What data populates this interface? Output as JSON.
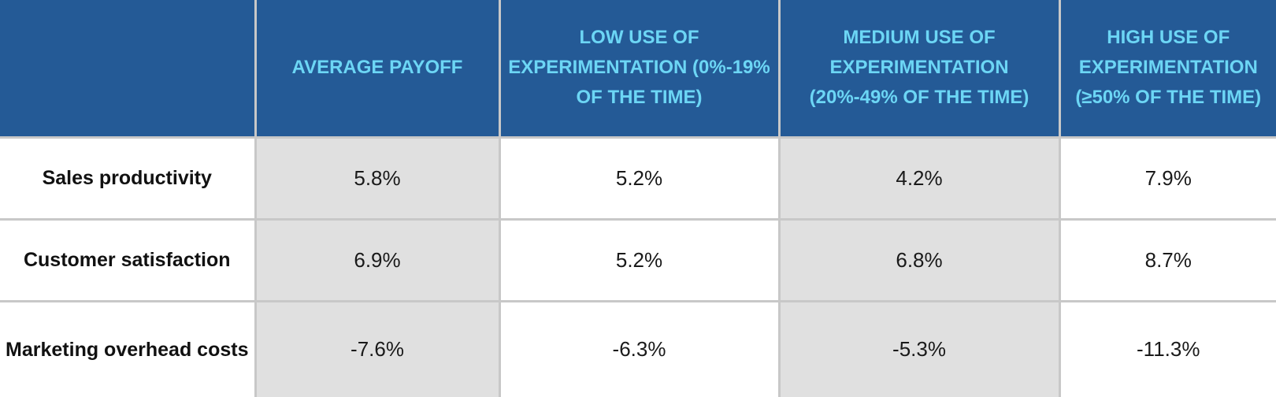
{
  "chart_data": {
    "type": "table",
    "columns": [
      "",
      "AVERAGE PAYOFF",
      "LOW USE OF EXPERIMENTATION (0%-19% OF THE TIME)",
      "MEDIUM USE OF EXPERIMENTATION (20%-49% OF THE TIME)",
      "HIGH USE OF EXPERIMENTATION (≥50% OF THE TIME)"
    ],
    "rows": [
      {
        "label": "Sales productivity",
        "values": [
          "5.8%",
          "5.2%",
          "4.2%",
          "7.9%"
        ]
      },
      {
        "label": "Customer satisfaction",
        "values": [
          "6.9%",
          "5.2%",
          "6.8%",
          "8.7%"
        ]
      },
      {
        "label": "Marketing overhead costs",
        "values": [
          "-7.6%",
          "-6.3%",
          "-5.3%",
          "-11.3%"
        ]
      }
    ],
    "header_bg_color": "#245a96",
    "header_text_color": "#6cd6f5",
    "shaded_cell_color": "#e0e0e0"
  }
}
